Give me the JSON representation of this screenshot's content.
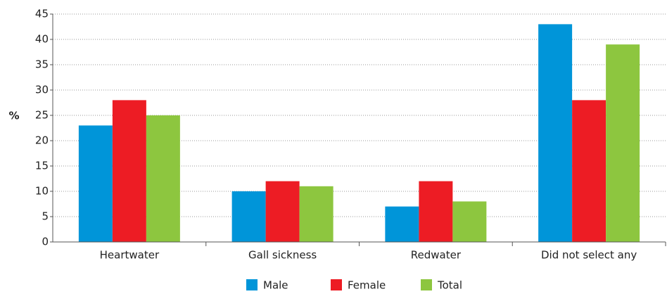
{
  "chart_data": {
    "type": "bar",
    "y_label": "%",
    "categories": [
      "Heartwater",
      "Gall sickness",
      "Redwater",
      "Did not select any"
    ],
    "series": [
      {
        "name": "Male",
        "color": "#0095d9",
        "values": [
          23,
          10,
          7,
          43
        ]
      },
      {
        "name": "Female",
        "color": "#ed1c24",
        "values": [
          28,
          12,
          12,
          28
        ]
      },
      {
        "name": "Total",
        "color": "#8dc63f",
        "values": [
          25,
          11,
          8,
          39
        ]
      }
    ],
    "ylim": [
      0,
      45
    ],
    "yticks": [
      0,
      5,
      10,
      15,
      20,
      25,
      30,
      35,
      40,
      45
    ],
    "grid": true,
    "legend": "bottom"
  }
}
